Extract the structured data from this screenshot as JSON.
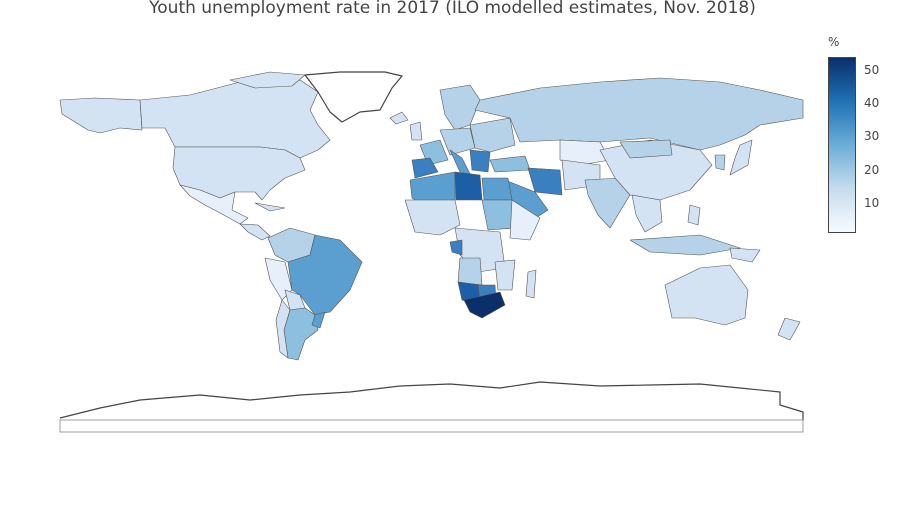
{
  "title": "Youth unemployment rate in 2017 (ILO modelled estimates, Nov. 2018)",
  "colorbar": {
    "unit": "%",
    "ticks": [
      "50",
      "40",
      "30",
      "20",
      "10"
    ],
    "scale_min": 0,
    "scale_max": 53,
    "colors": [
      "#f7fbff",
      "#c6dbef",
      "#6baed6",
      "#2171b5",
      "#08306b"
    ]
  },
  "map": {
    "ocean": "#ffffff",
    "border": "#555555",
    "colors": {
      "low": "#e6effa",
      "light": "#d3e3f3",
      "mid_light": "#b5d2e9",
      "mid": "#8dbfe1",
      "mid_dark": "#5b9fd0",
      "dark": "#3a7fc0",
      "very_dark": "#1c5fa6",
      "darkest": "#0b2f6b"
    }
  }
}
